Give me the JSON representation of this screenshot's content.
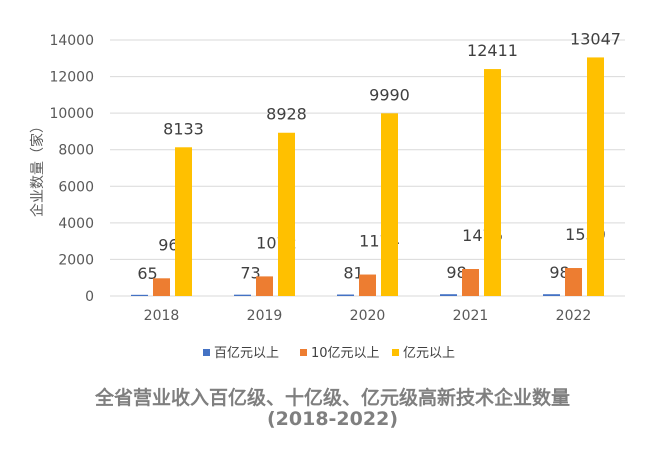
{
  "caption": {
    "line1": "全省营业收入百亿级、十亿级、亿元级高新技术企业数量",
    "line2": "(2018-2022)"
  },
  "chart_data": {
    "type": "bar",
    "title": "全省营业收入百亿级、十亿级、亿元级高新技术企业数量 (2018-2022)",
    "xlabel": "",
    "ylabel": "企业数量（家）",
    "categories": [
      "2018",
      "2019",
      "2020",
      "2021",
      "2022"
    ],
    "ylim": [
      0,
      14000
    ],
    "yticks": [
      0,
      2000,
      4000,
      6000,
      8000,
      10000,
      12000,
      14000
    ],
    "grid": true,
    "legend_position": "bottom",
    "series": [
      {
        "name": "百亿元以上",
        "color": "#4472c4",
        "values": [
          65,
          73,
          81,
          98,
          98
        ]
      },
      {
        "name": "10亿元以上",
        "color": "#ed7d31",
        "values": [
          968,
          1072,
          1174,
          1476,
          1530
        ]
      },
      {
        "name": "亿元以上",
        "color": "#ffc000",
        "values": [
          8133,
          8928,
          9990,
          12411,
          13047
        ]
      }
    ]
  }
}
